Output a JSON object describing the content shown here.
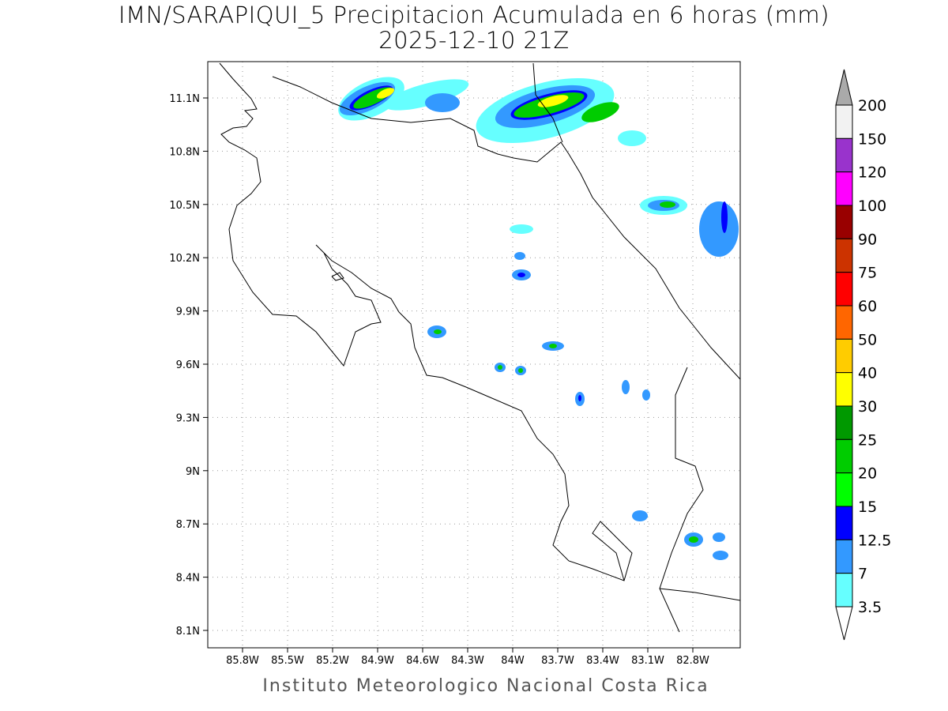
{
  "title": "IMN/SARAPIQUI_5 Precipitacion Acumulada en 6 horas (mm)",
  "subtitle": "2025-12-10 21Z",
  "footer": "Instituto Meteorologico Nacional Costa Rica",
  "lon_ticks": [
    "85.8W",
    "85.5W",
    "85.2W",
    "84.9W",
    "84.6W",
    "84.3W",
    "84W",
    "83.7W",
    "83.4W",
    "83.1W",
    "82.8W"
  ],
  "lat_ticks": [
    "11.1N",
    "10.8N",
    "10.5N",
    "10.2N",
    "9.9N",
    "9.6N",
    "9.3N",
    "9N",
    "8.7N",
    "8.4N",
    "8.1N"
  ],
  "colorbar": {
    "labels": [
      "200",
      "150",
      "120",
      "100",
      "90",
      "75",
      "60",
      "50",
      "40",
      "30",
      "25",
      "20",
      "15",
      "12.5",
      "7",
      "3.5"
    ],
    "colors": [
      "#f2f2f2",
      "#9933cc",
      "#ff00ff",
      "#990000",
      "#cc3300",
      "#ff0000",
      "#ff6600",
      "#ffcc00",
      "#ffff00",
      "#009900",
      "#00cc00",
      "#00ff00",
      "#0000ff",
      "#3399ff",
      "#66ffff"
    ],
    "over_color": "#aaaaaa",
    "under_color": "#ffffff"
  }
}
